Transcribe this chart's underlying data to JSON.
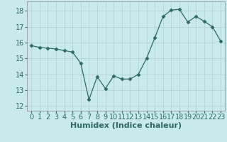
{
  "x": [
    0,
    1,
    2,
    3,
    4,
    5,
    6,
    7,
    8,
    9,
    10,
    11,
    12,
    13,
    14,
    15,
    16,
    17,
    18,
    19,
    20,
    21,
    22,
    23
  ],
  "y": [
    15.8,
    15.7,
    15.65,
    15.6,
    15.5,
    15.4,
    14.7,
    12.4,
    13.85,
    13.1,
    13.9,
    13.7,
    13.7,
    14.0,
    15.0,
    16.3,
    17.65,
    18.05,
    18.1,
    17.3,
    17.65,
    17.35,
    17.0,
    16.1
  ],
  "line_color": "#2d6b5e",
  "marker": "D",
  "marker_size": 2.5,
  "bg_color": "#c8eaea",
  "grid_color": "#b0d0d0",
  "xlabel": "Humidex (Indice chaleur)",
  "xlabel_fontsize": 8,
  "tick_fontsize": 7,
  "xlim": [
    -0.5,
    23.5
  ],
  "ylim": [
    11.7,
    18.6
  ],
  "yticks": [
    12,
    13,
    14,
    15,
    16,
    17,
    18
  ],
  "xticks": [
    0,
    1,
    2,
    3,
    4,
    5,
    6,
    7,
    8,
    9,
    10,
    11,
    12,
    13,
    14,
    15,
    16,
    17,
    18,
    19,
    20,
    21,
    22,
    23
  ]
}
